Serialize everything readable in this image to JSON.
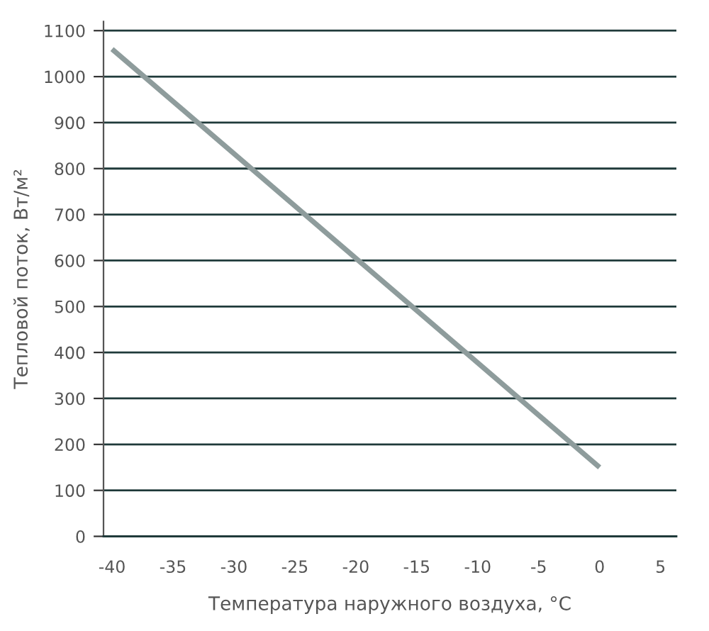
{
  "chart_data": {
    "type": "line",
    "xlabel": "Температура наружного воздуха, °C",
    "ylabel": "Тепловой поток, Вт/м²",
    "x": [
      -40,
      0
    ],
    "series": [
      {
        "color": "#8e9c9c",
        "values": [
          1060,
          150
        ]
      }
    ],
    "xlim": [
      -40.7,
      6.3
    ],
    "ylim": [
      0,
      1120
    ],
    "xticks": [
      -40,
      -35,
      -30,
      -25,
      -20,
      -15,
      -10,
      -5,
      0,
      5
    ],
    "yticks": [
      0,
      100,
      200,
      300,
      400,
      500,
      600,
      700,
      800,
      900,
      1000,
      1100
    ],
    "grid": "y",
    "marker": "none",
    "line_style": "solid"
  }
}
